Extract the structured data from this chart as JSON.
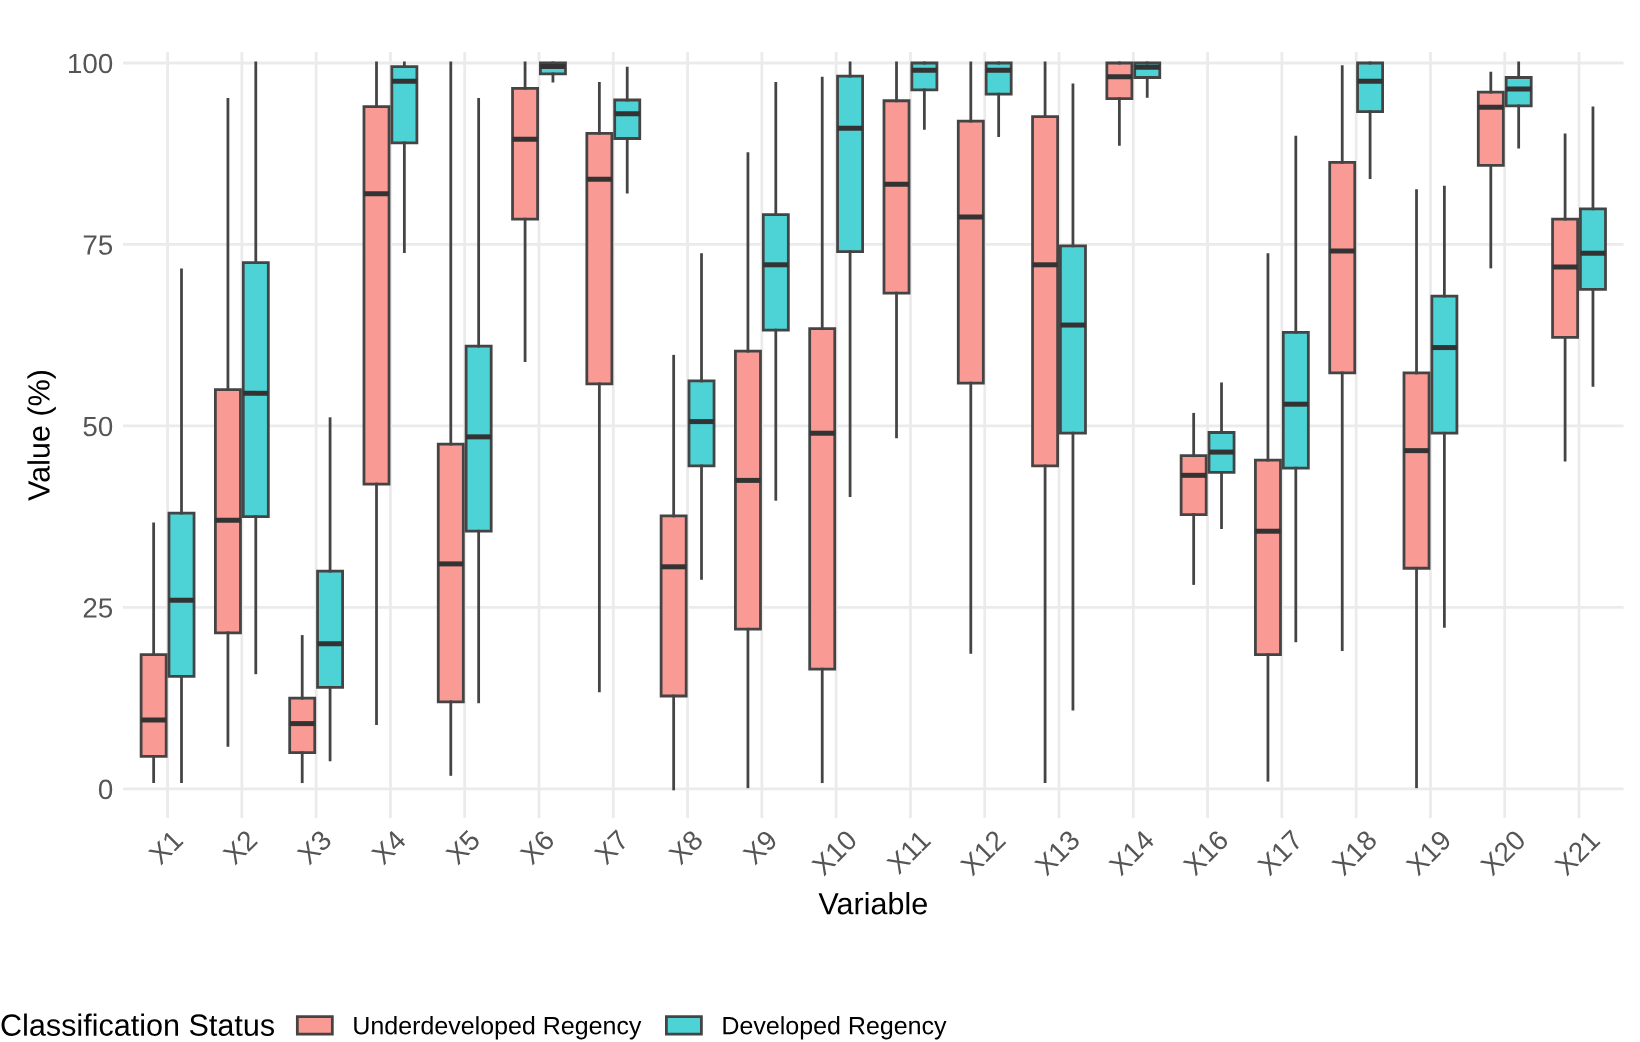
{
  "chart_data": {
    "type": "box",
    "xlabel": "Variable",
    "ylabel": "Value (%)",
    "legend_title": "Classification Status",
    "legend": "bottom",
    "grid": true,
    "categories": [
      "X1",
      "X2",
      "X3",
      "X4",
      "X5",
      "X6",
      "X7",
      "X8",
      "X9",
      "X10",
      "X11",
      "X12",
      "X13",
      "X14",
      "X16",
      "X17",
      "X18",
      "X19",
      "X20",
      "X21"
    ],
    "ylim": [
      -4,
      101.5
    ],
    "yticks": [
      0,
      25,
      50,
      75,
      100
    ],
    "series": [
      {
        "name": "Underdeveloped Regency",
        "color": "#f99a94",
        "boxes": [
          {
            "low": 1,
            "q1": 4.5,
            "median": 9.5,
            "q3": 18.5,
            "high": 36.5
          },
          {
            "low": 6,
            "q1": 21.5,
            "median": 37,
            "q3": 55,
            "high": 95
          },
          {
            "low": 1,
            "q1": 5,
            "median": 9,
            "q3": 12.5,
            "high": 21
          },
          {
            "low": 9,
            "q1": 42,
            "median": 82,
            "q3": 94,
            "high": 100
          },
          {
            "low": 2,
            "q1": 12,
            "median": 31,
            "q3": 47.5,
            "high": 100
          },
          {
            "low": 59,
            "q1": 78.5,
            "median": 89.5,
            "q3": 96.5,
            "high": 100
          },
          {
            "low": 13.5,
            "q1": 55.8,
            "median": 84,
            "q3": 90.3,
            "high": 97.2
          },
          {
            "low": 0,
            "q1": 12.8,
            "median": 30.6,
            "q3": 37.6,
            "high": 59.6
          },
          {
            "low": 0.3,
            "q1": 22,
            "median": 42.5,
            "q3": 60.3,
            "high": 87.5
          },
          {
            "low": 1,
            "q1": 16.5,
            "median": 49,
            "q3": 63.4,
            "high": 97.9
          },
          {
            "low": 48.5,
            "q1": 68.3,
            "median": 83.3,
            "q3": 94.8,
            "high": 100
          },
          {
            "low": 18.8,
            "q1": 55.9,
            "median": 78.8,
            "q3": 92,
            "high": 100
          },
          {
            "low": 1,
            "q1": 44.5,
            "median": 72.2,
            "q3": 92.6,
            "high": 100
          },
          {
            "low": 88.8,
            "q1": 95.1,
            "median": 98.1,
            "q3": 100,
            "high": 100
          },
          {
            "low": 28.3,
            "q1": 37.8,
            "median": 43.2,
            "q3": 45.9,
            "high": 51.6
          },
          {
            "low": 1.2,
            "q1": 18.5,
            "median": 35.5,
            "q3": 45.3,
            "high": 73.6
          },
          {
            "low": 19.2,
            "q1": 57.3,
            "median": 74.1,
            "q3": 86.3,
            "high": 99.5
          },
          {
            "low": 0.3,
            "q1": 30.4,
            "median": 46.6,
            "q3": 57.3,
            "high": 82.4
          },
          {
            "low": 71.9,
            "q1": 85.9,
            "median": 93.9,
            "q3": 96,
            "high": 98.6
          },
          {
            "low": 45.3,
            "q1": 62.2,
            "median": 71.9,
            "q3": 78.5,
            "high": 90.1
          }
        ]
      },
      {
        "name": "Developed Regency",
        "color": "#4dd2d6",
        "boxes": [
          {
            "low": 1,
            "q1": 15.5,
            "median": 26,
            "q3": 38,
            "high": 71.5
          },
          {
            "low": 16,
            "q1": 37.5,
            "median": 54.5,
            "q3": 72.5,
            "high": 100
          },
          {
            "low": 4,
            "q1": 14,
            "median": 20,
            "q3": 30,
            "high": 51
          },
          {
            "low": 74,
            "q1": 89,
            "median": 97.5,
            "q3": 99.5,
            "high": 100
          },
          {
            "low": 12,
            "q1": 35.5,
            "median": 48.5,
            "q3": 61,
            "high": 95
          },
          {
            "low": 97.5,
            "q1": 98.5,
            "median": 99.5,
            "q3": 100,
            "high": 100
          },
          {
            "low": 82.2,
            "q1": 89.6,
            "median": 93,
            "q3": 94.9,
            "high": 99.3
          },
          {
            "low": 29,
            "q1": 44.5,
            "median": 50.6,
            "q3": 56.2,
            "high": 73.6
          },
          {
            "low": 39.9,
            "q1": 63.2,
            "median": 72.2,
            "q3": 79.1,
            "high": 97.2
          },
          {
            "low": 40.4,
            "q1": 74,
            "median": 91,
            "q3": 98.2,
            "high": 100
          },
          {
            "low": 91,
            "q1": 96.3,
            "median": 99,
            "q3": 100,
            "high": 100
          },
          {
            "low": 90,
            "q1": 95.7,
            "median": 99,
            "q3": 100,
            "high": 100
          },
          {
            "low": 11,
            "q1": 49,
            "median": 63.9,
            "q3": 74.8,
            "high": 97
          },
          {
            "low": 95.4,
            "q1": 98,
            "median": 99.4,
            "q3": 100,
            "high": 100
          },
          {
            "low": 36,
            "q1": 43.6,
            "median": 46.4,
            "q3": 49.1,
            "high": 55.8
          },
          {
            "low": 20.4,
            "q1": 44.2,
            "median": 53,
            "q3": 62.9,
            "high": 89.8
          },
          {
            "low": 84.2,
            "q1": 93.3,
            "median": 97.5,
            "q3": 100,
            "high": 100
          },
          {
            "low": 22.4,
            "q1": 49,
            "median": 60.8,
            "q3": 67.9,
            "high": 82.9
          },
          {
            "low": 88.4,
            "q1": 94.1,
            "median": 96.4,
            "q3": 98,
            "high": 100
          },
          {
            "low": 55.6,
            "q1": 68.8,
            "median": 73.8,
            "q3": 79.9,
            "high": 93.8
          }
        ]
      }
    ]
  }
}
